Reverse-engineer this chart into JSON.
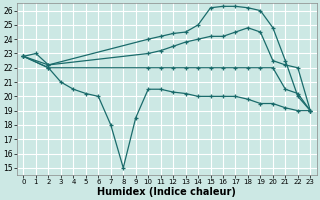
{
  "xlabel": "Humidex (Indice chaleur)",
  "bg_color": "#cce8e4",
  "line_color": "#1a6b6b",
  "grid_color": "#ffffff",
  "xlim": [
    -0.5,
    23.5
  ],
  "ylim": [
    14.5,
    26.5
  ],
  "xticks": [
    0,
    1,
    2,
    3,
    4,
    5,
    6,
    7,
    8,
    9,
    10,
    11,
    12,
    13,
    14,
    15,
    16,
    17,
    18,
    19,
    20,
    21,
    22,
    23
  ],
  "yticks": [
    15,
    16,
    17,
    18,
    19,
    20,
    21,
    22,
    23,
    24,
    25,
    26
  ],
  "s1_x": [
    0,
    1,
    2,
    10,
    11,
    12,
    13,
    14,
    15,
    16,
    17,
    18,
    19,
    20,
    21,
    22,
    23
  ],
  "s1_y": [
    22.8,
    23.0,
    22.2,
    24.0,
    24.2,
    24.4,
    24.5,
    25.0,
    26.2,
    26.3,
    26.3,
    26.2,
    26.0,
    24.8,
    22.5,
    20.0,
    19.0
  ],
  "s2_x": [
    0,
    2,
    10,
    11,
    12,
    13,
    14,
    15,
    16,
    17,
    18,
    19,
    20,
    21,
    22,
    23
  ],
  "s2_y": [
    22.8,
    22.2,
    23.0,
    23.2,
    23.5,
    23.8,
    24.0,
    24.2,
    24.2,
    24.5,
    24.8,
    24.5,
    22.5,
    22.2,
    22.0,
    19.0
  ],
  "s3_x": [
    0,
    2,
    3,
    4,
    5,
    6,
    7,
    8,
    9,
    10,
    11,
    12,
    13,
    14,
    15,
    16,
    17,
    18,
    19,
    20,
    21,
    22,
    23
  ],
  "s3_y": [
    22.8,
    22.0,
    21.0,
    20.5,
    20.2,
    20.0,
    18.0,
    15.0,
    18.5,
    20.5,
    20.5,
    20.3,
    20.2,
    20.0,
    20.0,
    20.0,
    20.0,
    19.8,
    19.5,
    19.5,
    19.2,
    19.0,
    19.0
  ],
  "s4_x": [
    0,
    2,
    10,
    11,
    12,
    13,
    14,
    15,
    16,
    17,
    18,
    19,
    20,
    21,
    22,
    23
  ],
  "s4_y": [
    22.8,
    22.0,
    22.0,
    22.0,
    22.0,
    22.0,
    22.0,
    22.0,
    22.0,
    22.0,
    22.0,
    22.0,
    22.0,
    20.5,
    20.2,
    19.0
  ]
}
